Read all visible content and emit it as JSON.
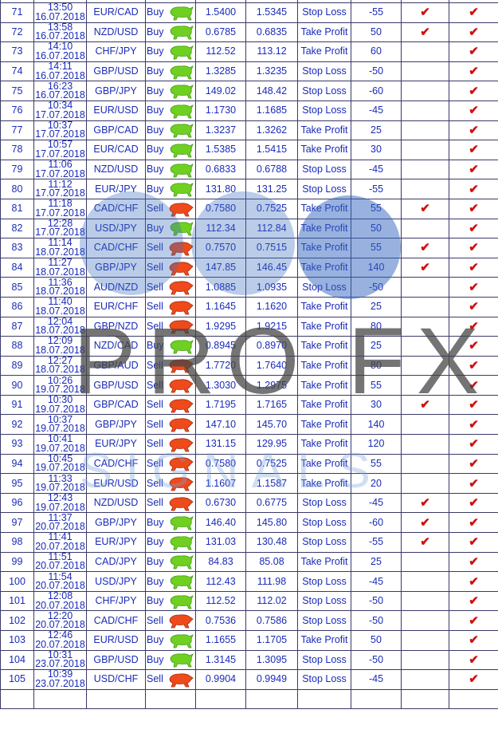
{
  "watermark": {
    "text": "PRO FX",
    "subtext": "SIGNALS"
  },
  "colors": {
    "text": "#1a2bb8",
    "check": "#d01010",
    "buy": "#66cc22",
    "sell": "#e23a1a",
    "border": "#3a3a6a"
  },
  "icons": {
    "buy": "bull-icon",
    "sell": "bear-icon",
    "check": "checkmark-icon"
  },
  "rows": [
    {
      "n": "71",
      "time": "13:50",
      "date": "16.07.2018",
      "pair": "EUR/CAD",
      "type": "Buy",
      "open": "1.5400",
      "close": "1.5345",
      "result": "Stop Loss",
      "pips": "-55",
      "c1": true,
      "c2": true
    },
    {
      "n": "72",
      "time": "13:58",
      "date": "16.07.2018",
      "pair": "NZD/USD",
      "type": "Buy",
      "open": "0.6785",
      "close": "0.6835",
      "result": "Take Profit",
      "pips": "50",
      "c1": true,
      "c2": true
    },
    {
      "n": "73",
      "time": "14:10",
      "date": "16.07.2018",
      "pair": "CHF/JPY",
      "type": "Buy",
      "open": "112.52",
      "close": "113.12",
      "result": "Take Profit",
      "pips": "60",
      "c1": false,
      "c2": true
    },
    {
      "n": "74",
      "time": "14:11",
      "date": "16.07.2018",
      "pair": "GBP/USD",
      "type": "Buy",
      "open": "1.3285",
      "close": "1.3235",
      "result": "Stop Loss",
      "pips": "-50",
      "c1": false,
      "c2": true
    },
    {
      "n": "75",
      "time": "16:23",
      "date": "16.07.2018",
      "pair": "GBP/JPY",
      "type": "Buy",
      "open": "149.02",
      "close": "148.42",
      "result": "Stop Loss",
      "pips": "-60",
      "c1": false,
      "c2": true
    },
    {
      "n": "76",
      "time": "10:34",
      "date": "17.07.2018",
      "pair": "EUR/USD",
      "type": "Buy",
      "open": "1.1730",
      "close": "1.1685",
      "result": "Stop Loss",
      "pips": "-45",
      "c1": false,
      "c2": true
    },
    {
      "n": "77",
      "time": "10:37",
      "date": "17.07.2018",
      "pair": "GBP/CAD",
      "type": "Buy",
      "open": "1.3237",
      "close": "1.3262",
      "result": "Take Profit",
      "pips": "25",
      "c1": false,
      "c2": true
    },
    {
      "n": "78",
      "time": "10:57",
      "date": "17.07.2018",
      "pair": "EUR/CAD",
      "type": "Buy",
      "open": "1.5385",
      "close": "1.5415",
      "result": "Take Profit",
      "pips": "30",
      "c1": false,
      "c2": true
    },
    {
      "n": "79",
      "time": "11:06",
      "date": "17.07.2018",
      "pair": "NZD/USD",
      "type": "Buy",
      "open": "0.6833",
      "close": "0.6788",
      "result": "Stop Loss",
      "pips": "-45",
      "c1": false,
      "c2": true
    },
    {
      "n": "80",
      "time": "11:12",
      "date": "17.07.2018",
      "pair": "EUR/JPY",
      "type": "Buy",
      "open": "131.80",
      "close": "131.25",
      "result": "Stop Loss",
      "pips": "-55",
      "c1": false,
      "c2": true
    },
    {
      "n": "81",
      "time": "11:18",
      "date": "17.07.2018",
      "pair": "CAD/CHF",
      "type": "Sell",
      "open": "0.7580",
      "close": "0.7525",
      "result": "Take Profit",
      "pips": "55",
      "c1": true,
      "c2": true
    },
    {
      "n": "82",
      "time": "12:28",
      "date": "17.07.2018",
      "pair": "USD/JPY",
      "type": "Buy",
      "open": "112.34",
      "close": "112.84",
      "result": "Take Profit",
      "pips": "50",
      "c1": false,
      "c2": true
    },
    {
      "n": "83",
      "time": "11:14",
      "date": "18.07.2018",
      "pair": "CAD/CHF",
      "type": "Sell",
      "open": "0.7570",
      "close": "0.7515",
      "result": "Take Profit",
      "pips": "55",
      "c1": true,
      "c2": true
    },
    {
      "n": "84",
      "time": "11:27",
      "date": "18.07.2018",
      "pair": "GBP/JPY",
      "type": "Sell",
      "open": "147.85",
      "close": "146.45",
      "result": "Take Profit",
      "pips": "140",
      "c1": true,
      "c2": true
    },
    {
      "n": "85",
      "time": "11:36",
      "date": "18.07.2018",
      "pair": "AUD/NZD",
      "type": "Sell",
      "open": "1.0885",
      "close": "1.0935",
      "result": "Stop Loss",
      "pips": "-50",
      "c1": false,
      "c2": true
    },
    {
      "n": "86",
      "time": "11:40",
      "date": "18.07.2018",
      "pair": "EUR/CHF",
      "type": "Sell",
      "open": "1.1645",
      "close": "1.1620",
      "result": "Take Profit",
      "pips": "25",
      "c1": false,
      "c2": true
    },
    {
      "n": "87",
      "time": "12:04",
      "date": "18.07.2018",
      "pair": "GBP/NZD",
      "type": "Sell",
      "open": "1.9295",
      "close": "1.9215",
      "result": "Take Profit",
      "pips": "80",
      "c1": false,
      "c2": true
    },
    {
      "n": "88",
      "time": "12:09",
      "date": "18.07.2018",
      "pair": "NZD/CAD",
      "type": "Buy",
      "open": "0.8945",
      "close": "0.8970",
      "result": "Take Profit",
      "pips": "25",
      "c1": false,
      "c2": true
    },
    {
      "n": "89",
      "time": "12:27",
      "date": "18.07.2018",
      "pair": "GBP/AUD",
      "type": "Sell",
      "open": "1.7720",
      "close": "1.7640",
      "result": "Take Profit",
      "pips": "80",
      "c1": false,
      "c2": true
    },
    {
      "n": "90",
      "time": "10:26",
      "date": "19.07.2018",
      "pair": "GBP/USD",
      "type": "Sell",
      "open": "1.3030",
      "close": "1.2975",
      "result": "Take Profit",
      "pips": "55",
      "c1": false,
      "c2": true
    },
    {
      "n": "91",
      "time": "10:30",
      "date": "19.07.2018",
      "pair": "GBP/CAD",
      "type": "Sell",
      "open": "1.7195",
      "close": "1.7165",
      "result": "Take Profit",
      "pips": "30",
      "c1": true,
      "c2": true
    },
    {
      "n": "92",
      "time": "10:37",
      "date": "19.07.2018",
      "pair": "GBP/JPY",
      "type": "Sell",
      "open": "147.10",
      "close": "145.70",
      "result": "Take Profit",
      "pips": "140",
      "c1": false,
      "c2": true
    },
    {
      "n": "93",
      "time": "10:41",
      "date": "19.07.2018",
      "pair": "EUR/JPY",
      "type": "Sell",
      "open": "131.15",
      "close": "129.95",
      "result": "Take Profit",
      "pips": "120",
      "c1": false,
      "c2": true
    },
    {
      "n": "94",
      "time": "10:45",
      "date": "19.07.2018",
      "pair": "CAD/CHF",
      "type": "Sell",
      "open": "0.7580",
      "close": "0.7525",
      "result": "Take Profit",
      "pips": "55",
      "c1": false,
      "c2": true
    },
    {
      "n": "95",
      "time": "11:33",
      "date": "19.07.2018",
      "pair": "EUR/USD",
      "type": "Sell",
      "open": "1.1607",
      "close": "1.1587",
      "result": "Take Profit",
      "pips": "20",
      "c1": false,
      "c2": true
    },
    {
      "n": "96",
      "time": "12:43",
      "date": "19.07.2018",
      "pair": "NZD/USD",
      "type": "Sell",
      "open": "0.6730",
      "close": "0.6775",
      "result": "Stop Loss",
      "pips": "-45",
      "c1": true,
      "c2": true
    },
    {
      "n": "97",
      "time": "11:37",
      "date": "20.07.2018",
      "pair": "GBP/JPY",
      "type": "Buy",
      "open": "146.40",
      "close": "145.80",
      "result": "Stop Loss",
      "pips": "-60",
      "c1": true,
      "c2": true
    },
    {
      "n": "98",
      "time": "11:41",
      "date": "20.07.2018",
      "pair": "EUR/JPY",
      "type": "Buy",
      "open": "131.03",
      "close": "130.48",
      "result": "Stop Loss",
      "pips": "-55",
      "c1": true,
      "c2": true
    },
    {
      "n": "99",
      "time": "11:51",
      "date": "20.07.2018",
      "pair": "CAD/JPY",
      "type": "Buy",
      "open": "84.83",
      "close": "85.08",
      "result": "Take Profit",
      "pips": "25",
      "c1": false,
      "c2": true
    },
    {
      "n": "100",
      "time": "11:54",
      "date": "20.07.2018",
      "pair": "USD/JPY",
      "type": "Buy",
      "open": "112.43",
      "close": "111.98",
      "result": "Stop Loss",
      "pips": "-45",
      "c1": false,
      "c2": true
    },
    {
      "n": "101",
      "time": "12:08",
      "date": "20.07.2018",
      "pair": "CHF/JPY",
      "type": "Buy",
      "open": "112.52",
      "close": "112.02",
      "result": "Stop Loss",
      "pips": "-50",
      "c1": false,
      "c2": true
    },
    {
      "n": "102",
      "time": "12:20",
      "date": "20.07.2018",
      "pair": "CAD/CHF",
      "type": "Sell",
      "open": "0.7536",
      "close": "0.7586",
      "result": "Stop Loss",
      "pips": "-50",
      "c1": false,
      "c2": true
    },
    {
      "n": "103",
      "time": "12:46",
      "date": "20.07.2018",
      "pair": "EUR/USD",
      "type": "Buy",
      "open": "1.1655",
      "close": "1.1705",
      "result": "Take Profit",
      "pips": "50",
      "c1": false,
      "c2": true
    },
    {
      "n": "104",
      "time": "10:31",
      "date": "23.07.2018",
      "pair": "GBP/USD",
      "type": "Buy",
      "open": "1.3145",
      "close": "1.3095",
      "result": "Stop Loss",
      "pips": "-50",
      "c1": false,
      "c2": true
    },
    {
      "n": "105",
      "time": "10:39",
      "date": "23.07.2018",
      "pair": "USD/CHF",
      "type": "Sell",
      "open": "0.9904",
      "close": "0.9949",
      "result": "Stop Loss",
      "pips": "-45",
      "c1": false,
      "c2": true
    }
  ]
}
